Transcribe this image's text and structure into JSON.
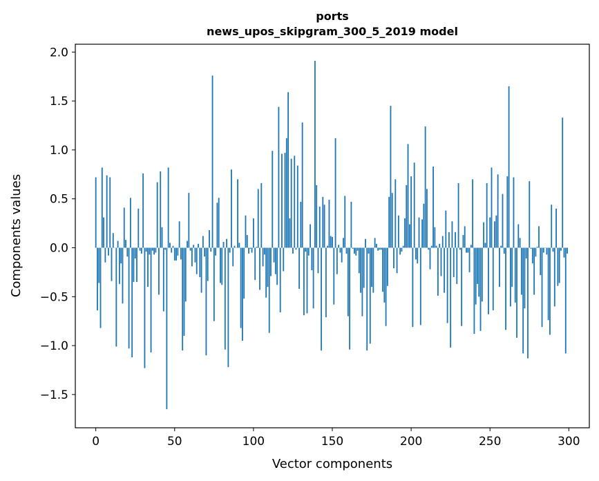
{
  "chart_data": {
    "type": "bar",
    "title_line1": "ports",
    "title_line2": "news_upos_skipgram_300_5_2019 model",
    "xlabel": "Vector components",
    "ylabel": "Components values",
    "xlim": [
      -13,
      313
    ],
    "ylim": [
      -1.84,
      2.08
    ],
    "xticks": [
      0,
      50,
      100,
      150,
      200,
      250,
      300
    ],
    "yticks": [
      -1.5,
      -1.0,
      -0.5,
      0.0,
      0.5,
      1.0,
      1.5,
      2.0
    ],
    "ytick_labels": [
      "−1.5",
      "−1.0",
      "−0.5",
      "0.0",
      "0.5",
      "1.0",
      "1.5",
      "2.0"
    ],
    "bar_color": "#1f77b4",
    "values": [
      0.72,
      -0.64,
      -0.36,
      -0.82,
      0.82,
      0.31,
      -0.15,
      0.74,
      -0.08,
      0.72,
      -0.34,
      0.15,
      0.0,
      -1.01,
      0.07,
      -0.37,
      -0.16,
      -0.57,
      0.41,
      0.08,
      -0.09,
      -1.03,
      0.51,
      -1.12,
      -0.35,
      -0.11,
      -0.35,
      0.4,
      -0.03,
      -0.06,
      0.76,
      -1.23,
      -0.04,
      -0.4,
      -0.07,
      -1.07,
      -0.03,
      -0.07,
      -0.05,
      0.67,
      -0.48,
      0.78,
      0.21,
      -0.65,
      -0.02,
      -1.65,
      0.82,
      0.05,
      -0.05,
      0.02,
      -0.13,
      -0.13,
      -0.08,
      0.27,
      -0.12,
      -1.05,
      -0.9,
      -0.55,
      0.07,
      0.56,
      -0.03,
      -0.19,
      0.03,
      -0.15,
      -0.27,
      0.04,
      -0.3,
      -0.46,
      0.12,
      -0.09,
      -1.1,
      -0.34,
      0.18,
      -0.04,
      1.76,
      -0.75,
      -0.08,
      0.46,
      0.51,
      -0.36,
      -0.38,
      0.06,
      -1.04,
      0.09,
      -1.22,
      -0.05,
      0.8,
      -0.19,
      0.02,
      0.0,
      0.7,
      0.05,
      -0.82,
      -0.95,
      -0.52,
      0.33,
      0.13,
      -0.06,
      -0.01,
      -0.05,
      0.3,
      -0.33,
      0.01,
      0.6,
      -0.43,
      0.66,
      -0.19,
      -0.07,
      -0.51,
      -0.4,
      -0.87,
      -0.29,
      0.99,
      -0.15,
      -0.27,
      -0.38,
      1.44,
      -0.66,
      0.96,
      -0.24,
      0.97,
      1.12,
      1.59,
      0.3,
      0.91,
      -0.06,
      0.94,
      -0.02,
      0.84,
      -0.42,
      0.47,
      1.28,
      -0.69,
      -0.04,
      -0.67,
      -0.08,
      0.24,
      -0.23,
      -0.62,
      1.91,
      0.64,
      -0.26,
      0.42,
      -1.05,
      0.52,
      0.44,
      -0.71,
      0.02,
      0.49,
      0.12,
      0.11,
      -0.58,
      1.12,
      -0.27,
      0.03,
      -0.05,
      -0.15,
      0.1,
      0.53,
      -0.06,
      -0.7,
      -1.04,
      0.47,
      -0.01,
      -0.06,
      -0.08,
      -0.03,
      -0.26,
      -0.46,
      -0.7,
      -0.41,
      0.09,
      -1.05,
      -0.06,
      -0.98,
      -0.4,
      -0.46,
      0.1,
      0.04,
      -0.03,
      -0.02,
      -0.02,
      -0.45,
      -0.56,
      -0.8,
      -0.39,
      0.52,
      1.45,
      0.56,
      -0.21,
      0.7,
      -0.26,
      0.33,
      -0.07,
      -0.04,
      0.02,
      0.3,
      0.64,
      1.06,
      0.24,
      0.73,
      -0.81,
      0.87,
      -0.12,
      -0.16,
      0.31,
      -0.79,
      0.29,
      0.45,
      1.24,
      0.6,
      -0.02,
      -0.22,
      0.02,
      0.83,
      0.21,
      0.02,
      -0.49,
      0.04,
      -0.29,
      0.12,
      -0.46,
      0.38,
      -0.77,
      0.16,
      -1.02,
      0.27,
      -0.3,
      0.16,
      -0.37,
      0.66,
      -0.02,
      -0.8,
      0.13,
      0.22,
      -0.05,
      -0.05,
      -0.25,
      0.03,
      0.7,
      -0.88,
      -0.58,
      -0.37,
      -0.5,
      -0.85,
      -0.55,
      0.26,
      0.05,
      0.66,
      -0.68,
      0.31,
      0.82,
      -0.64,
      0.27,
      0.33,
      0.75,
      -0.4,
      0.02,
      0.55,
      -0.06,
      -0.84,
      0.73,
      1.65,
      -0.6,
      -0.4,
      0.72,
      -0.56,
      -0.92,
      0.24,
      0.1,
      -0.48,
      -1.08,
      -0.62,
      -0.11,
      -1.13,
      0.68,
      -0.01,
      -0.16,
      -0.48,
      -0.09,
      0.01,
      0.22,
      -0.28,
      -0.81,
      -0.05,
      0.0,
      -0.07,
      -0.74,
      -0.89,
      0.44,
      -0.04,
      -0.6,
      0.4,
      -0.39,
      -0.36,
      -0.03,
      1.33,
      -0.1,
      -1.08,
      -0.06
    ]
  }
}
